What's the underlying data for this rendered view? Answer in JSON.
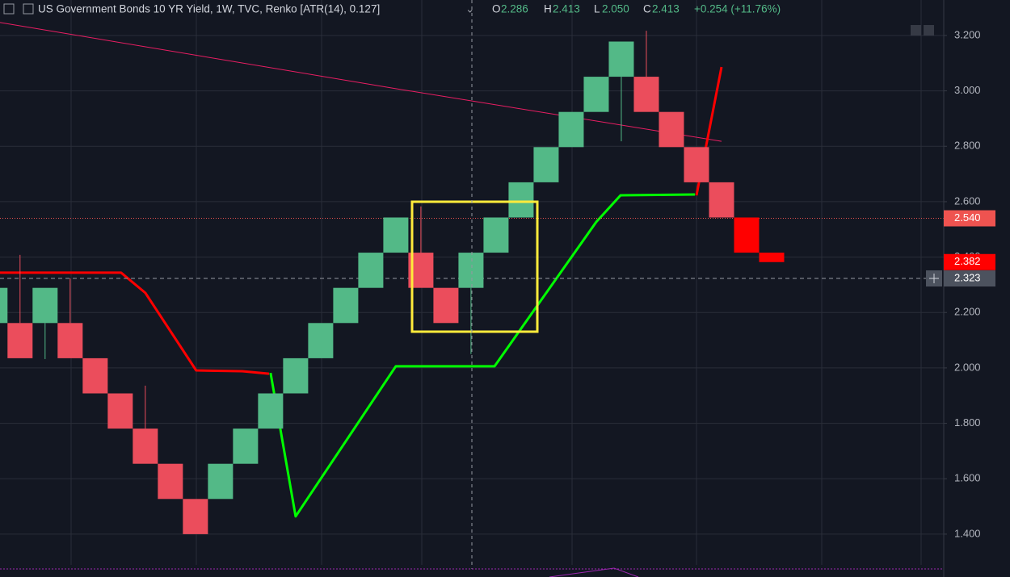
{
  "header": {
    "symbol": "US Government Bonds 10 YR Yield, 1W, TVC, Renko [ATR(14), 0.127]",
    "ohlc": [
      {
        "key": "O",
        "value": "2.286"
      },
      {
        "key": "H",
        "value": "2.413"
      },
      {
        "key": "L",
        "value": "2.050"
      },
      {
        "key": "C",
        "value": "2.413"
      }
    ],
    "change": "+0.254 (+11.76%)"
  },
  "chart_data": {
    "type": "renko",
    "xlim": [
      0.2,
      37.87
    ],
    "ylim": [
      1.289,
      3.328
    ],
    "yticks": [
      {
        "value": 1.4,
        "label": "1.400"
      },
      {
        "value": 1.6,
        "label": "1.600"
      },
      {
        "value": 1.8,
        "label": "1.800"
      },
      {
        "value": 2.0,
        "label": "2.000"
      },
      {
        "value": 2.2,
        "label": "2.200"
      },
      {
        "value": 2.4,
        "label": "2.400"
      },
      {
        "value": 2.6,
        "label": "2.600"
      },
      {
        "value": 2.8,
        "label": "2.800"
      },
      {
        "value": 3.0,
        "label": "3.000"
      },
      {
        "value": 3.2,
        "label": "3.200"
      }
    ],
    "grid": true,
    "x": [
      0,
      1,
      2,
      3,
      4,
      5,
      6,
      7,
      8,
      9,
      10,
      11,
      12,
      13,
      14,
      15,
      16,
      17,
      18,
      19,
      20,
      21,
      22,
      23,
      24,
      25,
      26,
      27,
      28,
      29,
      30,
      31
    ],
    "open": [
      2.162,
      2.162,
      2.162,
      2.162,
      2.035,
      1.908,
      1.781,
      1.654,
      1.527,
      1.527,
      1.654,
      1.781,
      1.908,
      2.035,
      2.162,
      2.289,
      2.416,
      2.416,
      2.289,
      2.289,
      2.416,
      2.543,
      2.67,
      2.797,
      2.924,
      3.051,
      3.051,
      2.924,
      2.797,
      2.67,
      2.543,
      2.416
    ],
    "close": [
      2.289,
      2.035,
      2.289,
      2.035,
      1.908,
      1.781,
      1.654,
      1.527,
      1.4,
      1.654,
      1.781,
      1.908,
      2.035,
      2.162,
      2.289,
      2.416,
      2.543,
      2.289,
      2.162,
      2.416,
      2.543,
      2.67,
      2.797,
      2.924,
      3.051,
      3.178,
      2.924,
      2.797,
      2.67,
      2.543,
      2.416,
      2.382
    ],
    "high": [
      null,
      2.408,
      null,
      2.323,
      null,
      null,
      1.936,
      null,
      null,
      null,
      null,
      null,
      null,
      null,
      null,
      null,
      null,
      2.583,
      null,
      null,
      null,
      null,
      null,
      null,
      null,
      null,
      3.217,
      null,
      null,
      null,
      null,
      null
    ],
    "low": [
      null,
      null,
      2.032,
      null,
      null,
      null,
      null,
      null,
      null,
      null,
      null,
      null,
      null,
      null,
      null,
      null,
      null,
      null,
      null,
      2.05,
      null,
      null,
      null,
      null,
      null,
      2.818,
      null,
      null,
      null,
      null,
      null,
      null
    ],
    "colors": [
      "#53b987",
      "#eb4d5c",
      "#53b987",
      "#eb4d5c",
      "#eb4d5c",
      "#eb4d5c",
      "#eb4d5c",
      "#eb4d5c",
      "#eb4d5c",
      "#53b987",
      "#53b987",
      "#53b987",
      "#53b987",
      "#53b987",
      "#53b987",
      "#53b987",
      "#53b987",
      "#eb4d5c",
      "#eb4d5c",
      "#53b987",
      "#53b987",
      "#53b987",
      "#53b987",
      "#53b987",
      "#53b987",
      "#53b987",
      "#eb4d5c",
      "#eb4d5c",
      "#eb4d5c",
      "#eb4d5c",
      "#ff0000",
      "#ff0000"
    ],
    "lines": [
      {
        "color": "#e91e63",
        "x": [
          0.2,
          16.0,
          29.0
        ],
        "values": [
          3.247,
          3.008,
          2.818
        ]
      },
      {
        "color": "#ff0000",
        "x": [
          0.2,
          5.03,
          6.0,
          8.03,
          9.87,
          10.94
        ],
        "values": [
          2.344,
          2.344,
          2.271,
          1.991,
          1.988,
          1.979
        ]
      },
      {
        "color": "#00ff00",
        "x": [
          11.0,
          12.0,
          16.0,
          19.94,
          24.0,
          24.97,
          27.94
        ],
        "values": [
          1.982,
          1.464,
          2.006,
          2.006,
          2.527,
          2.623,
          2.626
        ]
      },
      {
        "color": "#ff0000",
        "x": [
          28.0,
          29.0
        ],
        "values": [
          2.623,
          3.086
        ]
      }
    ],
    "price_labels": [
      {
        "value": 2.54,
        "label": "2.540",
        "color": "#ef5350"
      },
      {
        "value": 2.382,
        "label": "2.382",
        "color": "#ff0000"
      },
      {
        "value": 2.323,
        "label": "2.323",
        "color": "#4c525e"
      }
    ]
  }
}
